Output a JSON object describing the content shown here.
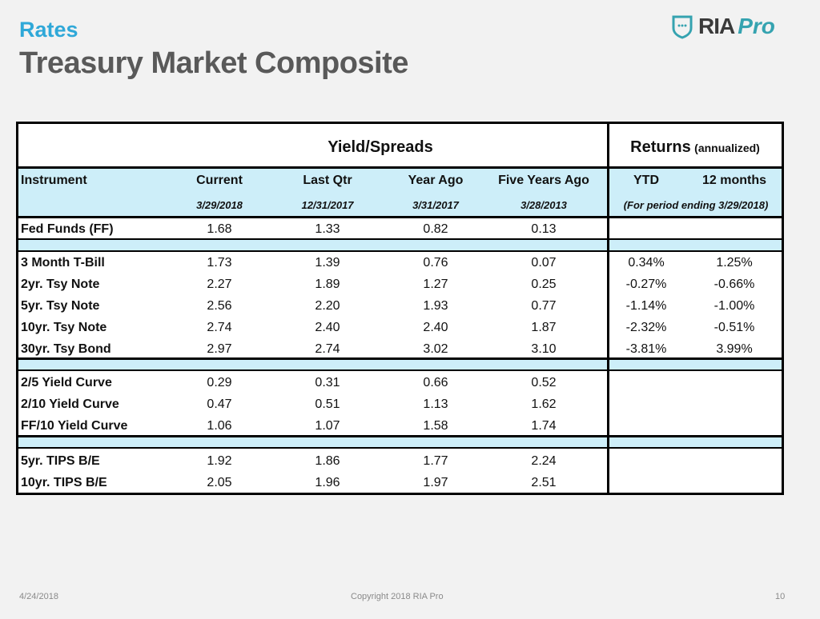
{
  "header": {
    "section": "Rates",
    "title": "Treasury Market Composite"
  },
  "logo": {
    "text": "RIA",
    "accent": "Pro",
    "icon": "shield-icon",
    "color": "#35a3b0"
  },
  "table": {
    "group_yield": "Yield/Spreads",
    "group_returns": "Returns",
    "group_returns_note": "(annualized)",
    "columns": [
      {
        "label": "Instrument",
        "date": ""
      },
      {
        "label": "Current",
        "date": "3/29/2018"
      },
      {
        "label": "Last Qtr",
        "date": "12/31/2017"
      },
      {
        "label": "Year Ago",
        "date": "3/31/2017"
      },
      {
        "label": "Five Years Ago",
        "date": "3/28/2013"
      },
      {
        "label": "YTD"
      },
      {
        "label": "12 months"
      }
    ],
    "returns_period": "(For period ending 3/29/2018)",
    "rows": [
      [
        "Fed Funds (FF)",
        "1.68",
        "1.33",
        "0.82",
        "0.13",
        "",
        ""
      ],
      [
        "3 Month T-Bill",
        "1.73",
        "1.39",
        "0.76",
        "0.07",
        "0.34%",
        "1.25%"
      ],
      [
        "2yr. Tsy Note",
        "2.27",
        "1.89",
        "1.27",
        "0.25",
        "-0.27%",
        "-0.66%"
      ],
      [
        "5yr. Tsy Note",
        "2.56",
        "2.20",
        "1.93",
        "0.77",
        "-1.14%",
        "-1.00%"
      ],
      [
        "10yr. Tsy Note",
        "2.74",
        "2.40",
        "2.40",
        "1.87",
        "-2.32%",
        "-0.51%"
      ],
      [
        "30yr. Tsy Bond",
        "2.97",
        "2.74",
        "3.02",
        "3.10",
        "-3.81%",
        "3.99%"
      ],
      [
        "2/5 Yield Curve",
        "0.29",
        "0.31",
        "0.66",
        "0.52",
        "",
        ""
      ],
      [
        "2/10 Yield Curve",
        "0.47",
        "0.51",
        "1.13",
        "1.62",
        "",
        ""
      ],
      [
        "FF/10 Yield Curve",
        "1.06",
        "1.07",
        "1.58",
        "1.74",
        "",
        ""
      ],
      [
        "5yr. TIPS B/E",
        "1.92",
        "1.86",
        "1.77",
        "2.24",
        "",
        ""
      ],
      [
        "10yr. TIPS B/E",
        "2.05",
        "1.96",
        "1.97",
        "2.51",
        "",
        ""
      ]
    ],
    "header_bg": "#cdeef9"
  },
  "footer": {
    "date": "4/24/2018",
    "copyright": "Copyright 2018 RIA Pro",
    "page": "10"
  }
}
